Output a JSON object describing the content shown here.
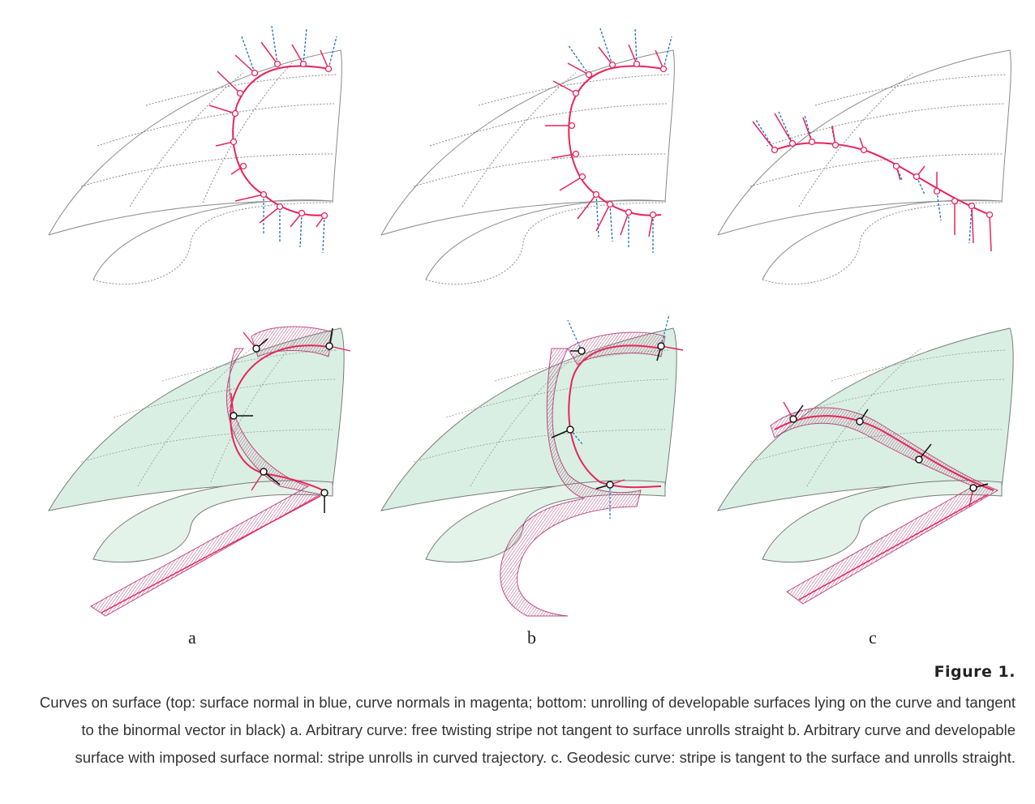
{
  "panels": [
    {
      "label": "a"
    },
    {
      "label": "b"
    },
    {
      "label": "c"
    }
  ],
  "figure": {
    "title": "Figure 1.",
    "caption": "Curves on surface (top: surface normal in blue, curve normals in magenta; bottom: unrolling of developable surfaces lying on the curve and tangent to the binormal vector in black)  a. Arbitrary curve: free twisting stripe not tangent to surface unrolls straight b. Arbitrary curve and developable surface with imposed surface normal: stripe unrolls in curved trajectory. c. Geodesic curve: stripe is tangent to the surface and unrolls straight."
  },
  "colors": {
    "curve": "#e8245c",
    "surface_normal": "#1f6fc2",
    "binormal": "#111111",
    "surface_fill": "#d9efe3",
    "stripe": "#c8508a",
    "wire": "#9a9a9a"
  }
}
